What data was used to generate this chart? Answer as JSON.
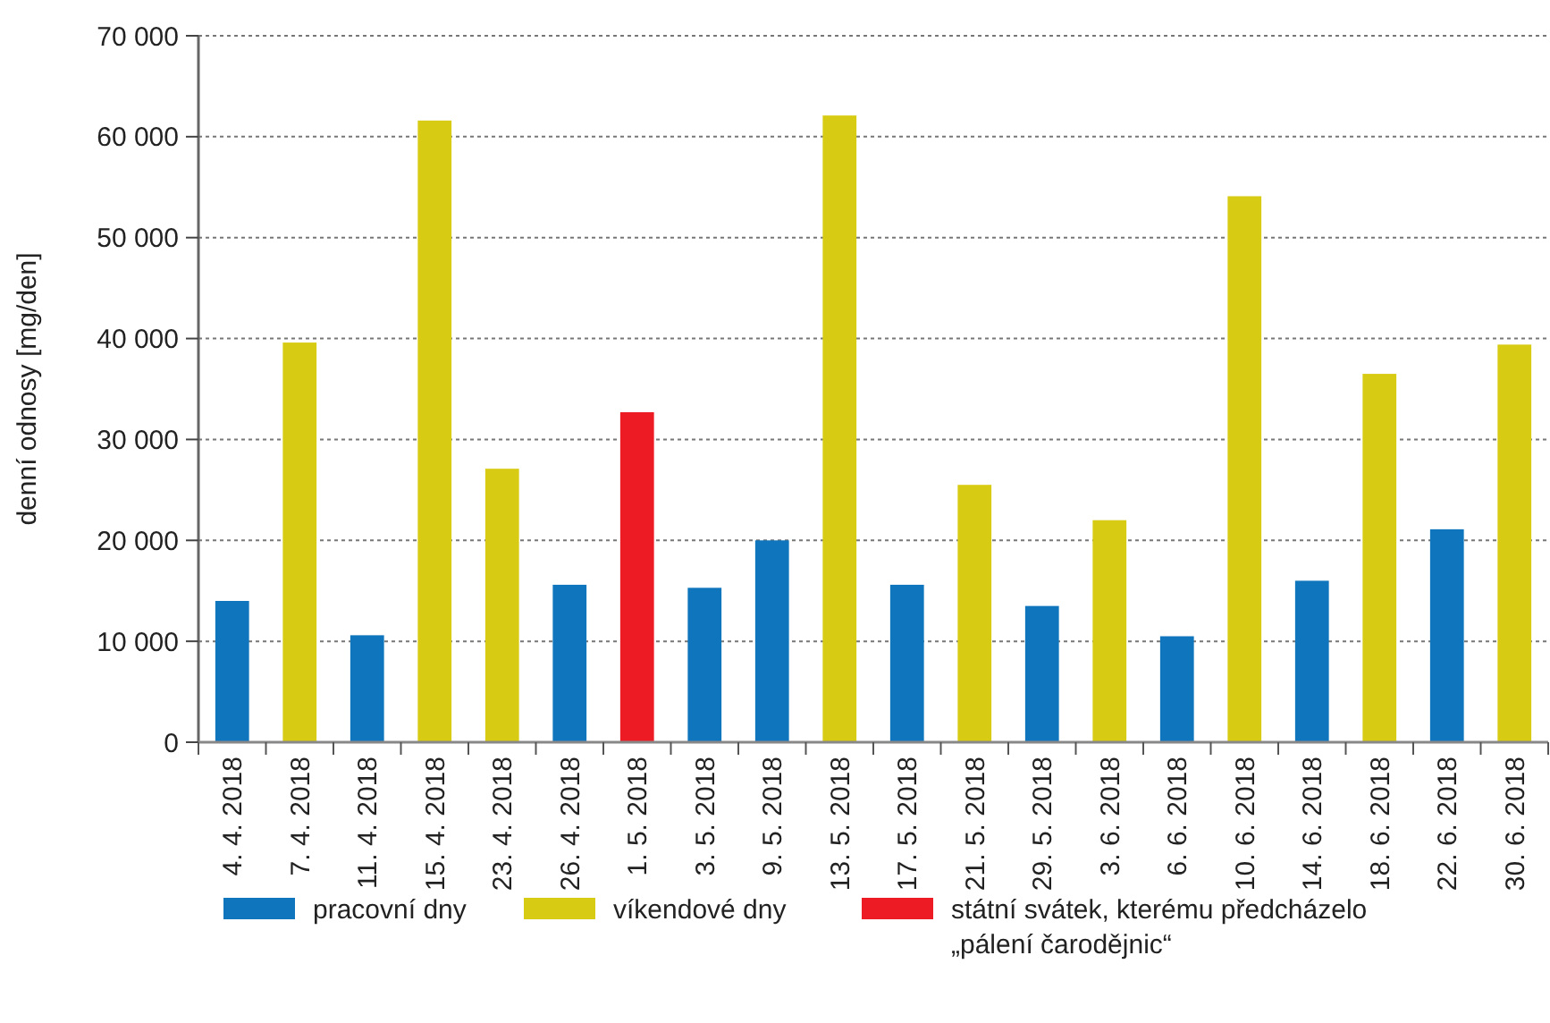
{
  "chart_data": {
    "type": "bar",
    "ylabel": "denní odnosy [mg/den]",
    "categories": [
      "4. 4. 2018",
      "7. 4. 2018",
      "11. 4. 2018",
      "15. 4. 2018",
      "23. 4. 2018",
      "26. 4. 2018",
      "1. 5. 2018",
      "3. 5. 2018",
      "9. 5. 2018",
      "13. 5. 2018",
      "17. 5. 2018",
      "21. 5. 2018",
      "29. 5. 2018",
      "3. 6. 2018",
      "6. 6. 2018",
      "10. 6. 2018",
      "14. 6. 2018",
      "18. 6. 2018",
      "22. 6. 2018",
      "30. 6. 2018"
    ],
    "series": [
      {
        "name": "pracovní dny",
        "color": "#0f75bc",
        "values": [
          14000,
          null,
          10600,
          null,
          null,
          15600,
          null,
          15300,
          20000,
          null,
          15600,
          null,
          13500,
          null,
          10500,
          null,
          16000,
          null,
          21100,
          null
        ]
      },
      {
        "name": "víkendové dny",
        "color": "#d8cb13",
        "values": [
          null,
          39600,
          null,
          61600,
          27100,
          null,
          null,
          null,
          null,
          62100,
          null,
          25500,
          null,
          22000,
          null,
          54100,
          null,
          36500,
          null,
          39400
        ]
      },
      {
        "name": "státní svátek, kterému předcházelo „pálení čarodějnic“",
        "color": "#ed1c24",
        "values": [
          null,
          null,
          null,
          null,
          null,
          null,
          32700,
          null,
          null,
          null,
          null,
          null,
          null,
          null,
          null,
          null,
          null,
          null,
          null,
          null
        ]
      }
    ],
    "ylim": [
      0,
      70000
    ],
    "yticks": [
      {
        "value": 0,
        "label": "0"
      },
      {
        "value": 10000,
        "label": "10 000"
      },
      {
        "value": 20000,
        "label": "20 000"
      },
      {
        "value": 30000,
        "label": "30 000"
      },
      {
        "value": 40000,
        "label": "40 000"
      },
      {
        "value": 50000,
        "label": "50 000"
      },
      {
        "value": 60000,
        "label": "60 000"
      },
      {
        "value": 70000,
        "label": "70 000"
      }
    ],
    "grid": "y",
    "legend": "bottom"
  }
}
